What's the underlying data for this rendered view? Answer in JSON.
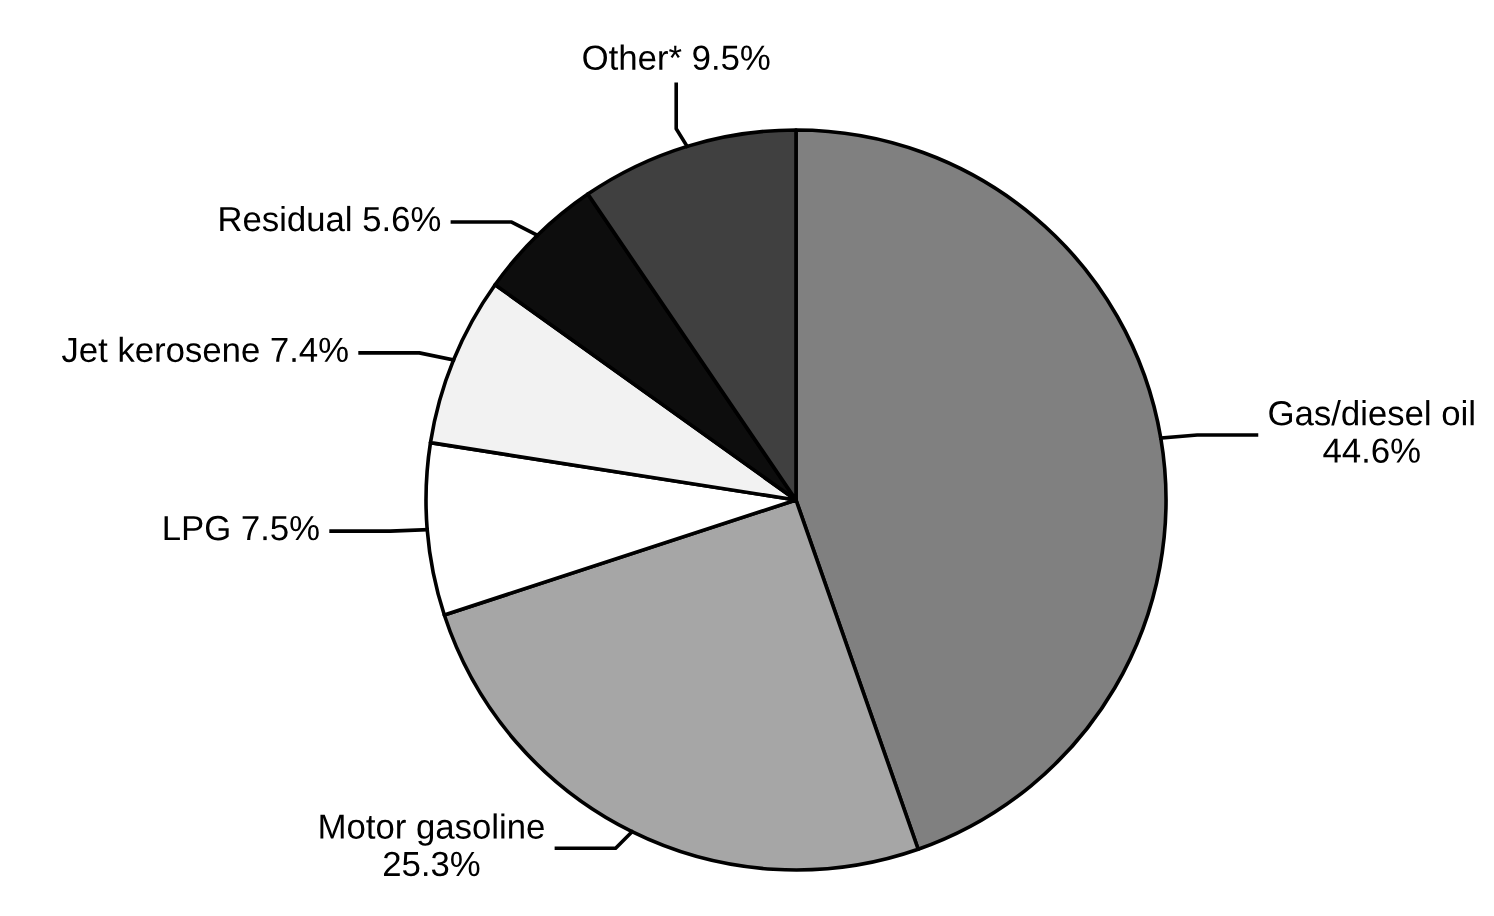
{
  "chart_data": {
    "type": "pie",
    "categories": [
      "Gas/diesel oil",
      "Motor gasoline",
      "LPG",
      "Jet kerosene",
      "Residual",
      "Other*"
    ],
    "values": [
      44.6,
      25.3,
      7.5,
      7.4,
      5.6,
      9.5
    ],
    "value_labels": [
      "44.6%",
      "25.3%",
      "7.5%",
      "7.4%",
      "5.6%",
      "9.5%"
    ],
    "colors": [
      "#808080",
      "#a6a6a6",
      "#ffffff",
      "#f2f2f2",
      "#0d0d0d",
      "#404040"
    ]
  }
}
